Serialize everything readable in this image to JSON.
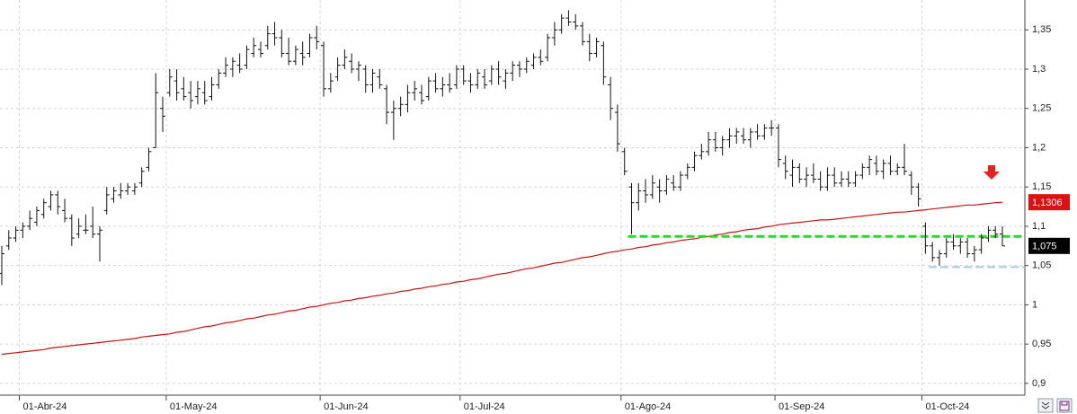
{
  "chart_data": {
    "type": "ohlc",
    "categories": [
      null,
      null,
      null,
      "01-Abr-24",
      null,
      null,
      null,
      null,
      null,
      null,
      null,
      null,
      null,
      null,
      null,
      null,
      null,
      null,
      null,
      null,
      null,
      null,
      null,
      null,
      "01-May-24",
      null,
      null,
      null,
      null,
      null,
      null,
      null,
      null,
      null,
      null,
      null,
      null,
      null,
      null,
      null,
      null,
      null,
      null,
      null,
      null,
      null,
      "01-Jun-24",
      null,
      null,
      null,
      null,
      null,
      null,
      null,
      null,
      null,
      null,
      null,
      null,
      null,
      null,
      null,
      null,
      null,
      null,
      null,
      "01-Jul-24",
      null,
      null,
      null,
      null,
      null,
      null,
      null,
      null,
      null,
      null,
      null,
      null,
      null,
      null,
      null,
      null,
      null,
      null,
      null,
      null,
      null,
      null,
      "01-Ago-24",
      null,
      null,
      null,
      null,
      null,
      null,
      null,
      null,
      null,
      null,
      null,
      null,
      null,
      null,
      null,
      null,
      null,
      null,
      null,
      null,
      null,
      "01-Sep-24",
      null,
      null,
      null,
      null,
      null,
      null,
      null,
      null,
      null,
      null,
      null,
      null,
      null,
      null,
      null,
      null,
      null,
      null,
      null,
      null,
      "01-Oct-24",
      null,
      null,
      null,
      null,
      null,
      null,
      null,
      null,
      null,
      null,
      null
    ],
    "ohlc": {
      "color": "#111111",
      "open": [
        1.04,
        1.075,
        1.085,
        1.095,
        1.1,
        1.105,
        1.115,
        1.125,
        1.14,
        1.12,
        1.11,
        1.09,
        1.095,
        1.1,
        1.09,
        1.12,
        1.135,
        1.14,
        1.145,
        1.145,
        1.155,
        1.175,
        1.2,
        1.25,
        1.27,
        1.285,
        1.275,
        1.27,
        1.265,
        1.27,
        1.265,
        1.28,
        1.295,
        1.3,
        1.305,
        1.305,
        1.32,
        1.325,
        1.33,
        1.345,
        1.34,
        1.32,
        1.31,
        1.32,
        1.32,
        1.34,
        1.33,
        1.275,
        1.29,
        1.305,
        1.31,
        1.3,
        1.3,
        1.28,
        1.29,
        1.275,
        1.245,
        1.25,
        1.255,
        1.27,
        1.27,
        1.265,
        1.285,
        1.275,
        1.28,
        1.28,
        1.3,
        1.285,
        1.28,
        1.29,
        1.285,
        1.3,
        1.285,
        1.295,
        1.305,
        1.3,
        1.305,
        1.315,
        1.315,
        1.34,
        1.35,
        1.365,
        1.36,
        1.355,
        1.335,
        1.32,
        1.33,
        1.28,
        1.245,
        1.195,
        1.15,
        1.13,
        1.145,
        1.14,
        1.15,
        1.145,
        1.155,
        1.15,
        1.165,
        1.175,
        1.19,
        1.195,
        1.21,
        1.2,
        1.21,
        1.215,
        1.215,
        1.21,
        1.22,
        1.215,
        1.225,
        1.225,
        1.18,
        1.165,
        1.175,
        1.16,
        1.165,
        1.16,
        1.15,
        1.165,
        1.155,
        1.16,
        1.155,
        1.165,
        1.175,
        1.18,
        1.17,
        1.18,
        1.17,
        1.175,
        1.165,
        1.15,
        1.1,
        1.075,
        1.06,
        1.065,
        1.08,
        1.075,
        1.08,
        1.065,
        1.07,
        1.085,
        1.095,
        1.09
      ],
      "high": [
        1.075,
        1.095,
        1.1,
        1.105,
        1.12,
        1.125,
        1.135,
        1.145,
        1.145,
        1.135,
        1.115,
        1.11,
        1.115,
        1.125,
        1.1,
        1.15,
        1.15,
        1.155,
        1.155,
        1.155,
        1.175,
        1.2,
        1.295,
        1.265,
        1.3,
        1.3,
        1.29,
        1.285,
        1.285,
        1.285,
        1.29,
        1.3,
        1.315,
        1.315,
        1.32,
        1.33,
        1.34,
        1.335,
        1.355,
        1.36,
        1.35,
        1.34,
        1.33,
        1.335,
        1.345,
        1.355,
        1.335,
        1.295,
        1.315,
        1.325,
        1.32,
        1.31,
        1.305,
        1.3,
        1.3,
        1.28,
        1.26,
        1.265,
        1.28,
        1.285,
        1.28,
        1.29,
        1.295,
        1.29,
        1.295,
        1.305,
        1.305,
        1.295,
        1.3,
        1.3,
        1.305,
        1.31,
        1.3,
        1.31,
        1.31,
        1.315,
        1.32,
        1.325,
        1.345,
        1.36,
        1.37,
        1.375,
        1.37,
        1.36,
        1.345,
        1.34,
        1.335,
        1.29,
        1.255,
        1.2,
        1.155,
        1.155,
        1.16,
        1.165,
        1.16,
        1.165,
        1.165,
        1.17,
        1.18,
        1.195,
        1.205,
        1.22,
        1.22,
        1.215,
        1.225,
        1.225,
        1.225,
        1.225,
        1.23,
        1.23,
        1.235,
        1.23,
        1.19,
        1.185,
        1.18,
        1.175,
        1.18,
        1.17,
        1.175,
        1.175,
        1.17,
        1.17,
        1.17,
        1.18,
        1.19,
        1.19,
        1.185,
        1.19,
        1.18,
        1.205,
        1.17,
        1.155,
        1.105,
        1.08,
        1.07,
        1.085,
        1.09,
        1.085,
        1.085,
        1.075,
        1.09,
        1.1,
        1.1,
        1.1
      ],
      "low": [
        1.025,
        1.07,
        1.08,
        1.085,
        1.095,
        1.1,
        1.11,
        1.12,
        1.115,
        1.105,
        1.075,
        1.085,
        1.09,
        1.085,
        1.055,
        1.115,
        1.13,
        1.135,
        1.14,
        1.14,
        1.15,
        1.17,
        1.2,
        1.22,
        1.265,
        1.26,
        1.26,
        1.25,
        1.255,
        1.255,
        1.26,
        1.275,
        1.29,
        1.29,
        1.295,
        1.3,
        1.315,
        1.315,
        1.325,
        1.33,
        1.315,
        1.305,
        1.305,
        1.305,
        1.315,
        1.325,
        1.265,
        1.27,
        1.285,
        1.3,
        1.295,
        1.285,
        1.27,
        1.27,
        1.275,
        1.23,
        1.21,
        1.24,
        1.245,
        1.26,
        1.255,
        1.26,
        1.27,
        1.265,
        1.27,
        1.275,
        1.28,
        1.27,
        1.275,
        1.275,
        1.28,
        1.28,
        1.275,
        1.285,
        1.29,
        1.295,
        1.3,
        1.305,
        1.31,
        1.33,
        1.345,
        1.355,
        1.35,
        1.33,
        1.31,
        1.315,
        1.28,
        1.235,
        1.195,
        1.165,
        1.09,
        1.12,
        1.13,
        1.135,
        1.13,
        1.14,
        1.145,
        1.145,
        1.16,
        1.17,
        1.185,
        1.19,
        1.195,
        1.19,
        1.2,
        1.205,
        1.205,
        1.2,
        1.21,
        1.21,
        1.215,
        1.175,
        1.16,
        1.15,
        1.155,
        1.15,
        1.155,
        1.145,
        1.145,
        1.15,
        1.15,
        1.15,
        1.15,
        1.16,
        1.165,
        1.165,
        1.16,
        1.165,
        1.165,
        1.165,
        1.14,
        1.125,
        1.065,
        1.055,
        1.05,
        1.06,
        1.07,
        1.065,
        1.06,
        1.055,
        1.065,
        1.08,
        1.085,
        1.075
      ],
      "close": [
        1.065,
        1.085,
        1.095,
        1.1,
        1.11,
        1.12,
        1.13,
        1.14,
        1.125,
        1.11,
        1.085,
        1.1,
        1.095,
        1.09,
        1.095,
        1.14,
        1.145,
        1.145,
        1.15,
        1.15,
        1.17,
        1.195,
        1.27,
        1.24,
        1.29,
        1.27,
        1.265,
        1.26,
        1.275,
        1.26,
        1.28,
        1.295,
        1.305,
        1.31,
        1.3,
        1.325,
        1.33,
        1.32,
        1.345,
        1.34,
        1.32,
        1.31,
        1.325,
        1.315,
        1.34,
        1.335,
        1.275,
        1.285,
        1.305,
        1.315,
        1.3,
        1.305,
        1.28,
        1.295,
        1.28,
        1.245,
        1.25,
        1.255,
        1.27,
        1.275,
        1.26,
        1.285,
        1.275,
        1.28,
        1.275,
        1.3,
        1.285,
        1.28,
        1.295,
        1.28,
        1.3,
        1.29,
        1.295,
        1.305,
        1.3,
        1.31,
        1.315,
        1.31,
        1.34,
        1.35,
        1.365,
        1.36,
        1.355,
        1.335,
        1.32,
        1.335,
        1.29,
        1.25,
        1.205,
        1.17,
        1.13,
        1.145,
        1.14,
        1.155,
        1.145,
        1.16,
        1.15,
        1.165,
        1.175,
        1.19,
        1.195,
        1.21,
        1.2,
        1.21,
        1.215,
        1.22,
        1.21,
        1.22,
        1.215,
        1.225,
        1.225,
        1.185,
        1.17,
        1.175,
        1.16,
        1.165,
        1.16,
        1.15,
        1.165,
        1.155,
        1.16,
        1.155,
        1.165,
        1.175,
        1.185,
        1.17,
        1.18,
        1.17,
        1.175,
        1.17,
        1.15,
        1.135,
        1.075,
        1.06,
        1.065,
        1.08,
        1.075,
        1.08,
        1.065,
        1.07,
        1.085,
        1.095,
        1.09,
        1.075
      ],
      "last_label": "1,075",
      "last_label_color": "#000000"
    },
    "ma": {
      "color": "#cc1111",
      "values": [
        0.937,
        0.938,
        0.939,
        0.94,
        0.941,
        0.942,
        0.943,
        0.945,
        0.946,
        0.947,
        0.948,
        0.949,
        0.95,
        0.951,
        0.952,
        0.953,
        0.954,
        0.955,
        0.956,
        0.957,
        0.959,
        0.96,
        0.961,
        0.962,
        0.963,
        0.965,
        0.966,
        0.968,
        0.97,
        0.972,
        0.973,
        0.975,
        0.977,
        0.978,
        0.98,
        0.982,
        0.983,
        0.985,
        0.987,
        0.988,
        0.99,
        0.992,
        0.993,
        0.995,
        0.997,
        0.998,
        1.0,
        1.002,
        1.003,
        1.005,
        1.006,
        1.008,
        1.009,
        1.011,
        1.012,
        1.014,
        1.015,
        1.017,
        1.018,
        1.02,
        1.021,
        1.023,
        1.024,
        1.026,
        1.027,
        1.029,
        1.03,
        1.032,
        1.033,
        1.035,
        1.037,
        1.039,
        1.04,
        1.042,
        1.044,
        1.046,
        1.047,
        1.049,
        1.051,
        1.053,
        1.054,
        1.056,
        1.058,
        1.06,
        1.061,
        1.063,
        1.065,
        1.067,
        1.068,
        1.07,
        1.071,
        1.073,
        1.074,
        1.076,
        1.077,
        1.079,
        1.08,
        1.082,
        1.083,
        1.084,
        1.086,
        1.087,
        1.089,
        1.09,
        1.092,
        1.093,
        1.095,
        1.096,
        1.097,
        1.099,
        1.1,
        1.102,
        1.103,
        1.104,
        1.105,
        1.106,
        1.107,
        1.108,
        1.108,
        1.109,
        1.11,
        1.111,
        1.112,
        1.113,
        1.114,
        1.115,
        1.116,
        1.117,
        1.118,
        1.118,
        1.119,
        1.12,
        1.121,
        1.122,
        1.123,
        1.124,
        1.125,
        1.126,
        1.127,
        1.127,
        1.128,
        1.129,
        1.13,
        1.1306
      ],
      "last_label": "1,1306",
      "last_label_color": "#dd1111"
    },
    "levels": [
      {
        "value": 1.087,
        "color": "#22dd22",
        "from": 90
      },
      {
        "value": 1.048,
        "color": "#a9c6e6",
        "from": 133
      }
    ],
    "ylim": [
      0.885,
      1.388
    ],
    "yticks": [
      {
        "value": 1.35,
        "label": "1,35"
      },
      {
        "value": 1.3,
        "label": "1,3"
      },
      {
        "value": 1.25,
        "label": "1,25"
      },
      {
        "value": 1.2,
        "label": "1,2"
      },
      {
        "value": 1.15,
        "label": "1,15"
      },
      {
        "value": 1.1,
        "label": "1,1"
      },
      {
        "value": 1.05,
        "label": "1,05"
      },
      {
        "value": 1,
        "label": "1"
      },
      {
        "value": 0.95,
        "label": "0,95"
      },
      {
        "value": 0.9,
        "label": "0,9"
      }
    ],
    "grid": true
  }
}
